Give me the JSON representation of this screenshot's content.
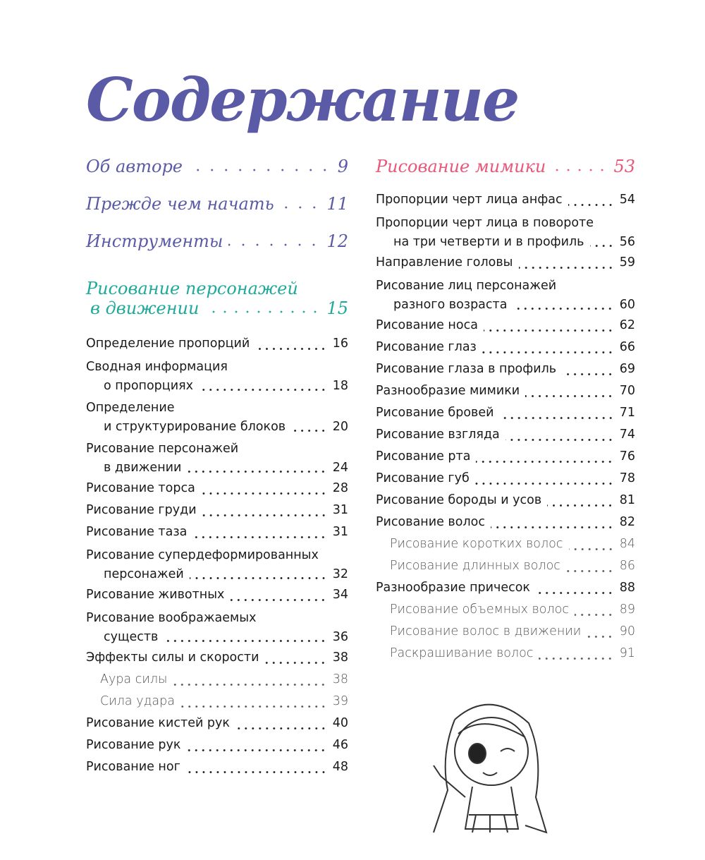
{
  "title": "Содержание",
  "top_items": [
    {
      "title": "Об авторе",
      "page": "9"
    },
    {
      "title": "Прежде чем начать",
      "page": "11"
    },
    {
      "title": "Инструменты",
      "page": "12"
    }
  ],
  "section1": {
    "title": "Рисование персонажей",
    "title_cont": "в движении",
    "page": "15",
    "color": "#1fa99a"
  },
  "left_items": [
    {
      "title": "Определение пропорций",
      "page": "16"
    },
    {
      "title": "Сводная информация",
      "cont": "о пропорциях",
      "page": "18"
    },
    {
      "title": "Определение",
      "cont": "и структурирование блоков",
      "page": "20"
    },
    {
      "title": "Рисование персонажей",
      "cont": "в движении",
      "page": "24"
    },
    {
      "title": "Рисование торса",
      "page": "28"
    },
    {
      "title": "Рисование груди",
      "page": "31"
    },
    {
      "title": "Рисование таза",
      "page": "31"
    },
    {
      "title": "Рисование супердеформированных",
      "cont": "персонажей",
      "page": "32"
    },
    {
      "title": "Рисование животных",
      "page": "34"
    },
    {
      "title": "Рисование воображаемых",
      "cont": "существ",
      "page": "36"
    },
    {
      "title": "Эффекты силы и скорости",
      "page": "38"
    },
    {
      "title": "Аура силы",
      "page": "38",
      "sub": true
    },
    {
      "title": "Сила удара",
      "page": "39",
      "sub": true
    },
    {
      "title": "Рисование кистей рук",
      "page": "40"
    },
    {
      "title": "Рисование рук",
      "page": "46"
    },
    {
      "title": "Рисование ног",
      "page": "48"
    }
  ],
  "section2": {
    "title": "Рисование мимики",
    "page": "53",
    "color": "#e8587a"
  },
  "right_items": [
    {
      "title": "Пропорции черт лица анфас",
      "page": "54"
    },
    {
      "title": "Пропорции черт лица в повороте",
      "cont": "на три четверти и в профиль",
      "page": "56"
    },
    {
      "title": "Направление головы",
      "page": "59"
    },
    {
      "title": "Рисование лиц персонажей",
      "cont": "разного возраста",
      "page": "60"
    },
    {
      "title": "Рисование носа",
      "page": "62"
    },
    {
      "title": "Рисование глаз",
      "page": "66"
    },
    {
      "title": "Рисование глаза в профиль",
      "page": "69"
    },
    {
      "title": "Разнообразие мимики",
      "page": "70"
    },
    {
      "title": "Рисование бровей",
      "page": "71"
    },
    {
      "title": "Рисование взгляда",
      "page": "74"
    },
    {
      "title": "Рисование рта",
      "page": "76"
    },
    {
      "title": "Рисование губ",
      "page": "78"
    },
    {
      "title": "Рисование бороды и усов",
      "page": "81"
    },
    {
      "title": "Рисование волос",
      "page": "82"
    },
    {
      "title": "Рисование коротких волос",
      "page": "84",
      "sub": true
    },
    {
      "title": "Рисование длинных волос",
      "page": "86",
      "sub": true
    },
    {
      "title": "Разнообразие причесок",
      "page": "88"
    },
    {
      "title": "Рисование объемных волос",
      "page": "89",
      "sub": true
    },
    {
      "title": "Рисование волос в движении",
      "page": "90",
      "sub": true
    },
    {
      "title": "Раскрашивание волос",
      "page": "91",
      "sub": true
    }
  ],
  "colors": {
    "title": "#5a5aa6",
    "text": "#1a1a1a"
  }
}
